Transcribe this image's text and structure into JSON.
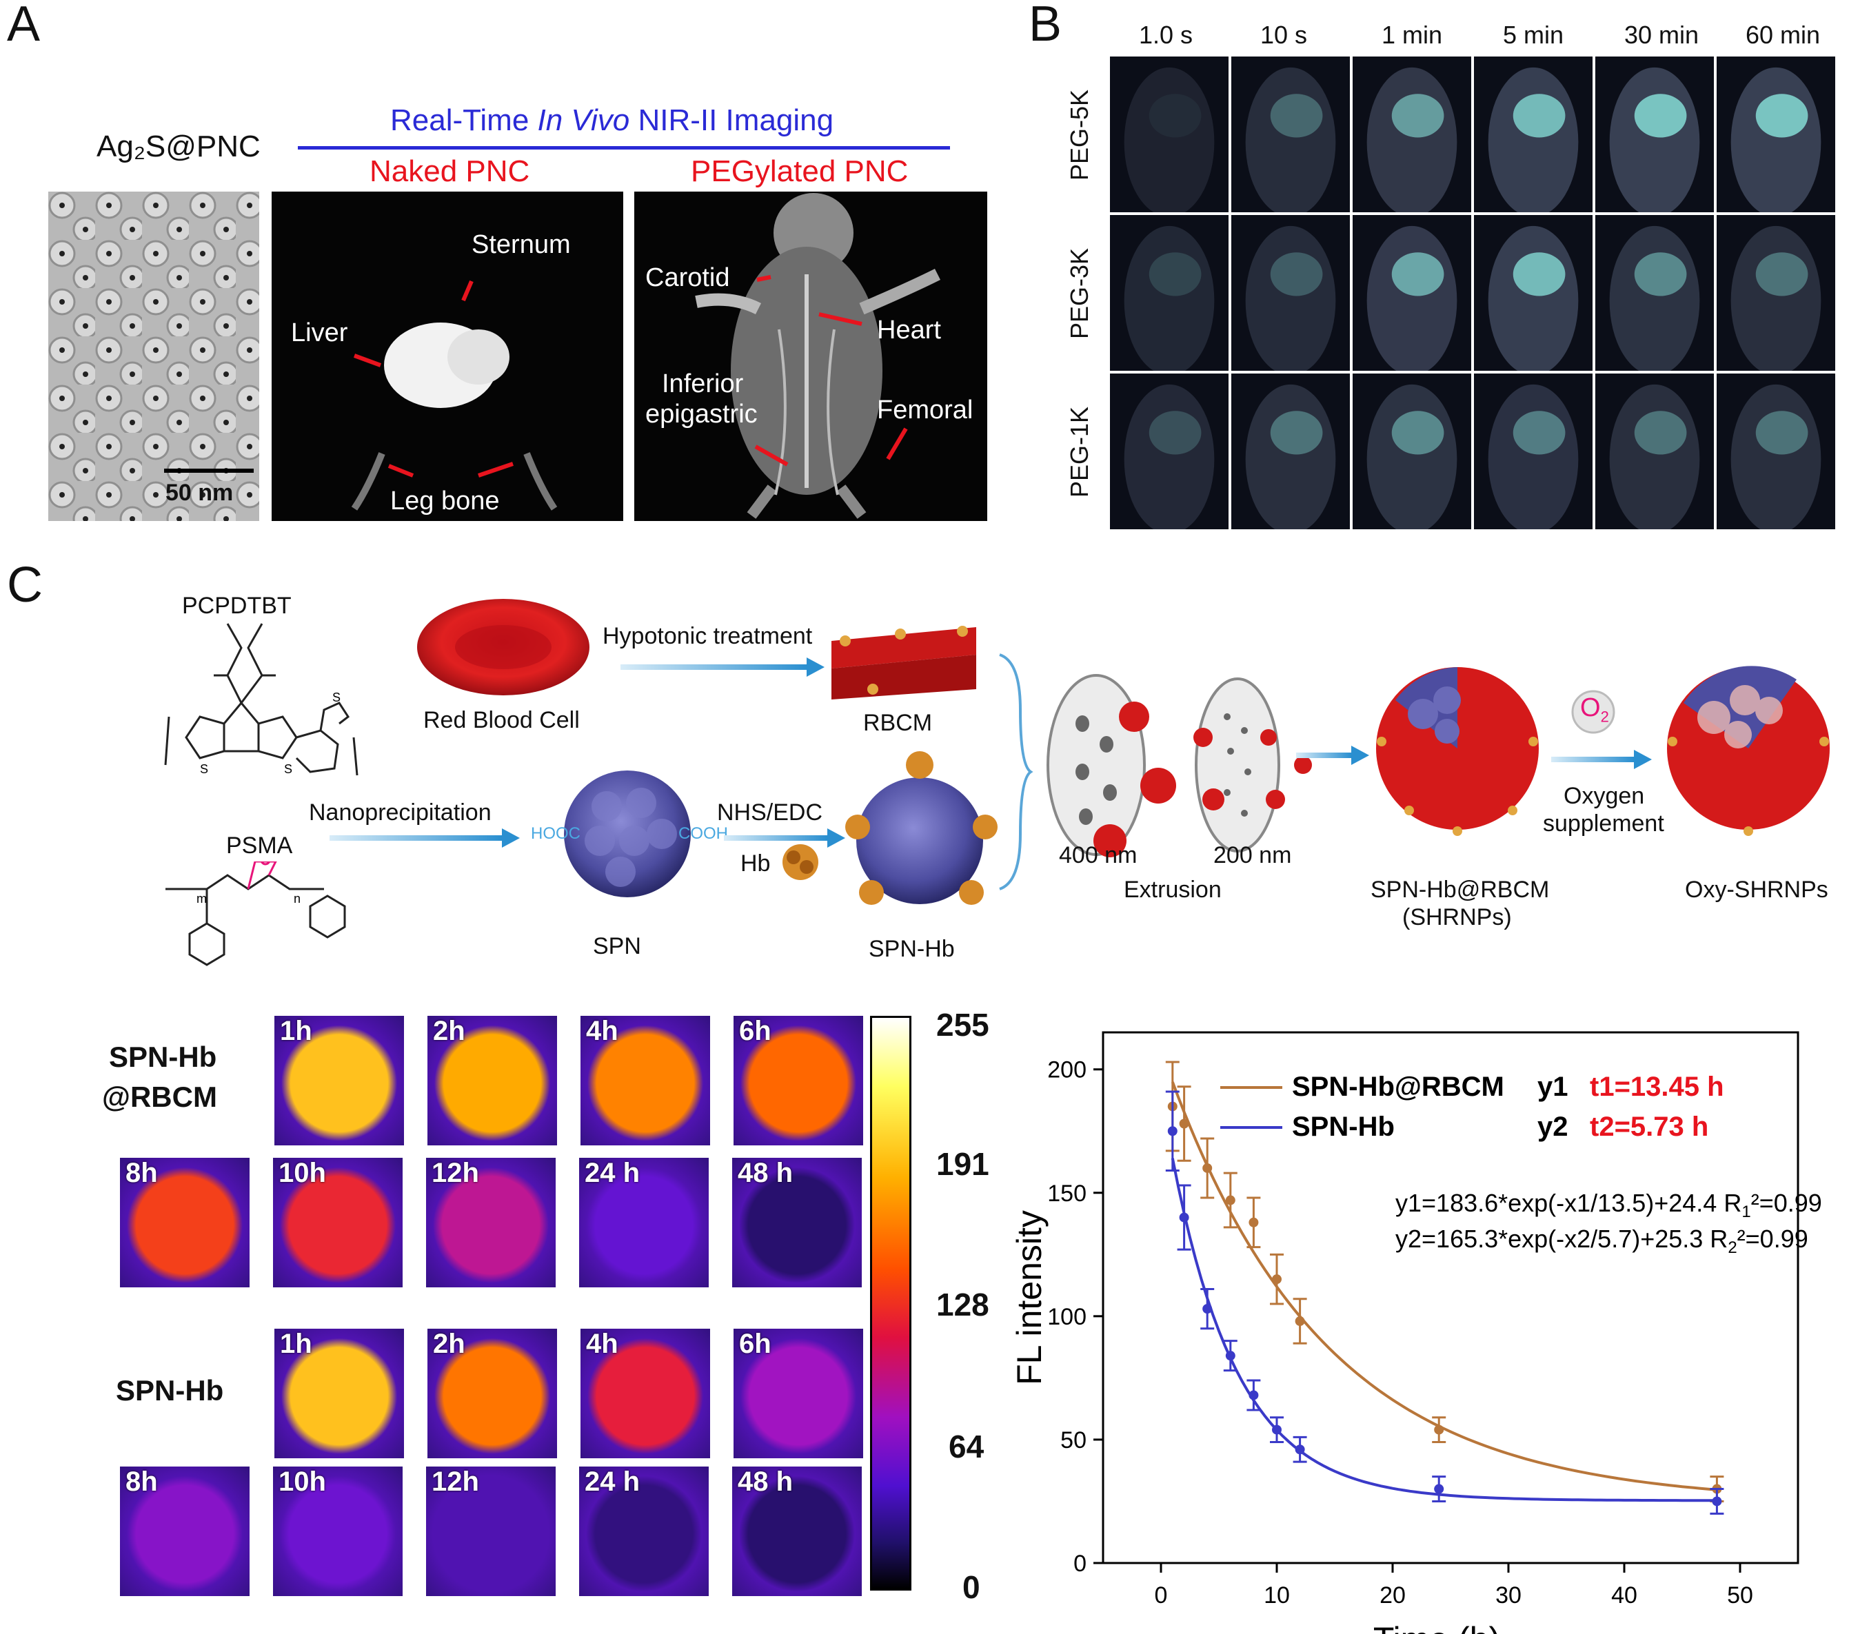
{
  "panel_a": {
    "label": "A",
    "compound": "Ag₂S@PNC",
    "title_pre": "Real-Time ",
    "title_italic": "In Vivo",
    "title_post": " NIR-II Imaging",
    "naked": "Naked PNC",
    "pegylated": "PEGylated PNC",
    "scalebar": "50 nm",
    "labels": {
      "sternum": "Sternum",
      "liver": "Liver",
      "leg_bone": "Leg bone",
      "carotid": "Carotid",
      "heart": "Heart",
      "inferior": "Inferior",
      "epigastric": "epigastric",
      "femoral": "Femoral"
    }
  },
  "panel_b": {
    "label": "B",
    "times": [
      "1.0 s",
      "10 s",
      "1 min",
      "5 min",
      "30 min",
      "60 min"
    ],
    "rows": [
      "PEG-5K",
      "PEG-3K",
      "PEG-1K"
    ]
  },
  "panel_c": {
    "label": "C",
    "scheme": {
      "pcpdtbt": "PCPDTBT",
      "psma": "PSMA",
      "n": "n",
      "m": "m",
      "rbc": "Red Blood Cell",
      "hypotonic": "Hypotonic treatment",
      "rbcm": "RBCM",
      "nanoprecip": "Nanoprecipitation",
      "spn": "SPN",
      "nhs": "NHS/EDC",
      "hb": "Hb",
      "spnhb": "SPN-Hb",
      "pore400": "400 nm",
      "pore200": "200 nm",
      "extrusion": "Extrusion",
      "shrnp1": "SPN-Hb@RBCM",
      "shrnp2": "(SHRNPs)",
      "o2": "O",
      "o2sub": "2",
      "oxygen1": "Oxygen",
      "oxygen2": "supplement",
      "oxy": "Oxy-SHRNPs",
      "hooc": "HOOC",
      "cooh": "COOH"
    },
    "heatmap": {
      "group1_a": "SPN-Hb",
      "group1_b": "@RBCM",
      "group2": "SPN-Hb",
      "times_top": [
        "1h",
        "2h",
        "4h",
        "6h"
      ],
      "times_bottom": [
        "8h",
        "10h",
        "12h",
        "24 h",
        "48 h"
      ],
      "colorbar": [
        "255",
        "191",
        "128",
        "64",
        "0"
      ],
      "group1_values": [
        215,
        205,
        190,
        180,
        160,
        145,
        120,
        70,
        40
      ],
      "group2_values": [
        215,
        185,
        140,
        105,
        90,
        75,
        60,
        45,
        40
      ]
    }
  },
  "chart_data": {
    "type": "scatter",
    "xlabel": "Time (h)",
    "ylabel": "FL intensity",
    "xlim": [
      -5,
      55
    ],
    "ylim": [
      0,
      215
    ],
    "xticks": [
      "0",
      "10",
      "20",
      "30",
      "40",
      "50"
    ],
    "yticks": [
      "0",
      "50",
      "100",
      "150",
      "200"
    ],
    "legend": [
      {
        "name": "SPN-Hb@RBCM",
        "tag": "y1",
        "half": "t1=13.45 h",
        "color": "#b8763a"
      },
      {
        "name": "SPN-Hb",
        "tag": "y2",
        "half": "t2=5.73 h",
        "color": "#3a3ac8"
      }
    ],
    "eq1_pre": "y1=183.6*exp(-x1/13.5)+24.4  R",
    "eq1_sub": "1",
    "eq1_post": "²=0.99",
    "eq2_pre": "y2=165.3*exp(-x2/5.7)+25.3    R",
    "eq2_sub": "2",
    "eq2_post": "²=0.99",
    "series": [
      {
        "name": "SPN-Hb@RBCM",
        "color": "#b8763a",
        "A": 183.6,
        "tau": 13.5,
        "c": 24.4,
        "x": [
          1,
          2,
          4,
          6,
          8,
          10,
          12,
          24,
          48
        ],
        "y": [
          185,
          178,
          160,
          147,
          138,
          115,
          98,
          54,
          30
        ],
        "err": [
          18,
          15,
          12,
          11,
          10,
          10,
          9,
          5,
          5
        ]
      },
      {
        "name": "SPN-Hb",
        "color": "#3a3ac8",
        "A": 165.3,
        "tau": 5.7,
        "c": 25.3,
        "x": [
          1,
          2,
          4,
          6,
          8,
          10,
          12,
          24,
          48
        ],
        "y": [
          175,
          140,
          103,
          84,
          68,
          54,
          46,
          30,
          25
        ],
        "err": [
          16,
          13,
          8,
          6,
          6,
          5,
          5,
          5,
          5
        ]
      }
    ]
  }
}
